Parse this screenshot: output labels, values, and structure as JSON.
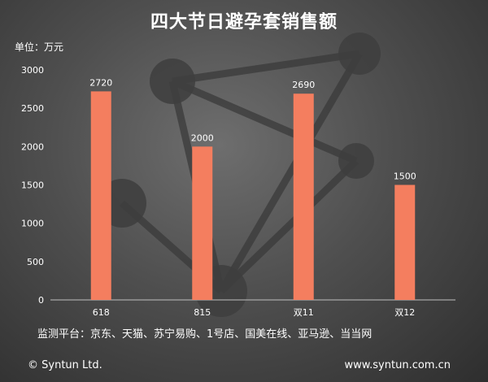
{
  "chart_data": {
    "type": "bar",
    "title": "四大节日避孕套销售额",
    "unit_label": "单位：万元",
    "categories": [
      "618",
      "815",
      "双11",
      "双12"
    ],
    "series": [
      {
        "values": [
          2720,
          2000,
          2690,
          1500
        ]
      }
    ],
    "data_labels": [
      "2720",
      "2000",
      "2690",
      "1500"
    ],
    "y_ticks": [
      "0",
      "500",
      "1000",
      "1500",
      "2000",
      "2500",
      "3000"
    ],
    "ylim": [
      0,
      3000
    ],
    "grid": false,
    "bar_color": "#f47e5f",
    "axis_color": "#bfbfbf"
  },
  "platform_note": "监测平台：京东、天猫、苏宁易购、1号店、国美在线、亚马逊、当当网",
  "footer": {
    "copyright": "© Syntun Ltd.",
    "website": "www.syntun.com.cn"
  }
}
